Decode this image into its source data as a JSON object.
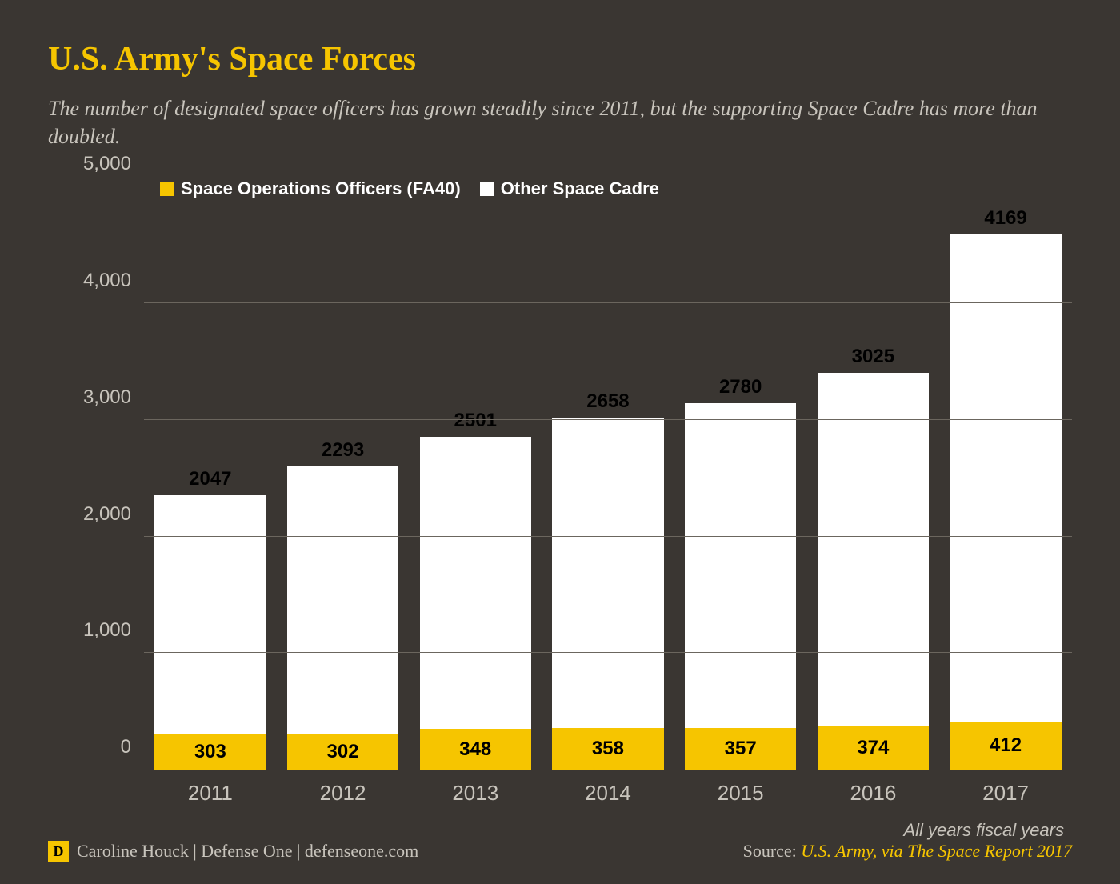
{
  "title": "U.S. Army's Space Forces",
  "subtitle": "The number of designated space officers has grown steadily since 2011, but the supporting Space Cadre has more than doubled.",
  "chart": {
    "type": "stacked-bar",
    "legend": [
      {
        "label": "Space Operations Officers (FA40)",
        "color": "#f6c500"
      },
      {
        "label": "Other Space Cadre",
        "color": "#ffffff"
      }
    ],
    "ylim_max": 5000,
    "yticks": [
      {
        "v": 0,
        "label": "0"
      },
      {
        "v": 1000,
        "label": "1,000"
      },
      {
        "v": 2000,
        "label": "2,000"
      },
      {
        "v": 3000,
        "label": "3,000"
      },
      {
        "v": 4000,
        "label": "4,000"
      },
      {
        "v": 5000,
        "label": "5,000"
      }
    ],
    "categories": [
      "2011",
      "2012",
      "2013",
      "2014",
      "2015",
      "2016",
      "2017"
    ],
    "series_bottom": {
      "color": "#f6c500",
      "values": [
        303,
        302,
        348,
        358,
        357,
        374,
        412
      ]
    },
    "series_top": {
      "color": "#ffffff",
      "values": [
        2047,
        2293,
        2501,
        2658,
        2780,
        3025,
        4169
      ]
    },
    "background_color": "#3a3632",
    "grid_color": "#6b665e",
    "label_fontsize": 24,
    "bar_label_color": "#000000",
    "axis_text_color": "#c8c4bc"
  },
  "note": "All years fiscal years",
  "footer": {
    "logo_letter": "D",
    "byline": "Caroline Houck | Defense One | defenseone.com",
    "source_prefix": "Source: ",
    "source_link": "U.S. Army, via The Space Report 2017"
  }
}
